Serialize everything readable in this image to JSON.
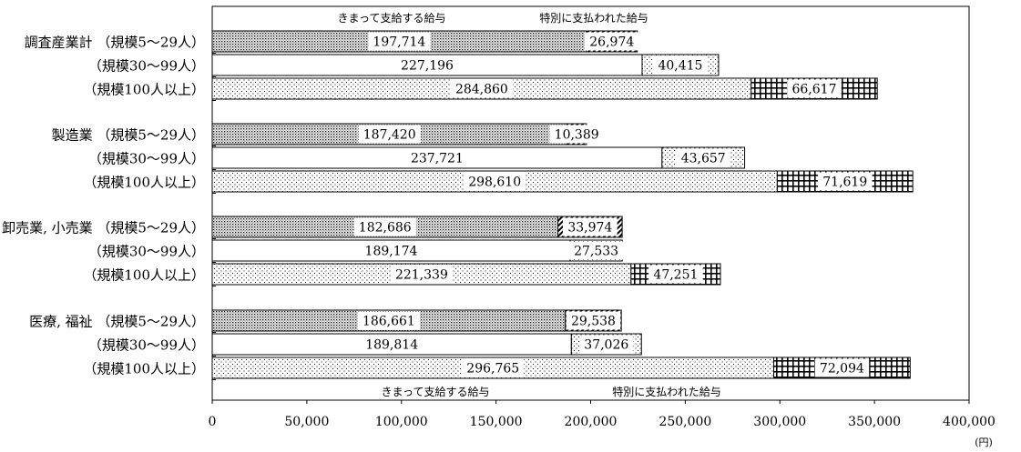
{
  "colors": {
    "regular_fill": "dense-dot-pattern",
    "special_fill_5_29": "hatched-pattern",
    "special_fill_30_99": "light-dot-pattern",
    "special_fill_100plus": "grid-pattern",
    "axis": "#000000"
  },
  "chart_data": {
    "type": "bar",
    "orientation": "horizontal",
    "stacked": true,
    "unit_label": "(円)",
    "xlim": [
      0,
      400000
    ],
    "x_ticks": [
      "0",
      "50,000",
      "100,000",
      "150,000",
      "200,000",
      "250,000",
      "300,000",
      "350,000",
      "400,000"
    ],
    "legend_top": [
      "きまって支給する給与",
      "特別に支払われた給与"
    ],
    "legend_bottom": [
      "きまって支給する給与",
      "特別に支払われた給与"
    ],
    "groups": [
      {
        "industry": "調査産業計",
        "bars": [
          {
            "size": "（規模5～29人）",
            "regular": 197714,
            "regular_label": "197,714",
            "special": 26974,
            "special_label": "26,974"
          },
          {
            "size": "（規模30～99人）",
            "regular": 227196,
            "regular_label": "227,196",
            "special": 40415,
            "special_label": "40,415"
          },
          {
            "size": "（規模100人以上）",
            "regular": 284860,
            "regular_label": "284,860",
            "special": 66617,
            "special_label": "66,617"
          }
        ]
      },
      {
        "industry": "製造業",
        "bars": [
          {
            "size": "（規模5～29人）",
            "regular": 187420,
            "regular_label": "187,420",
            "special": 10389,
            "special_label": "10,389"
          },
          {
            "size": "（規模30～99人）",
            "regular": 237721,
            "regular_label": "237,721",
            "special": 43657,
            "special_label": "43,657"
          },
          {
            "size": "（規模100人以上）",
            "regular": 298610,
            "regular_label": "298,610",
            "special": 71619,
            "special_label": "71,619"
          }
        ]
      },
      {
        "industry": "卸売業, 小売業",
        "bars": [
          {
            "size": "（規模5～29人）",
            "regular": 182686,
            "regular_label": "182,686",
            "special": 33974,
            "special_label": "33,974"
          },
          {
            "size": "（規模30～99人）",
            "regular": 189174,
            "regular_label": "189,174",
            "special": 27533,
            "special_label": "27,533"
          },
          {
            "size": "（規模100人以上）",
            "regular": 221339,
            "regular_label": "221,339",
            "special": 47251,
            "special_label": "47,251"
          }
        ]
      },
      {
        "industry": "医療, 福祉",
        "bars": [
          {
            "size": "（規模5～29人）",
            "regular": 186661,
            "regular_label": "186,661",
            "special": 29538,
            "special_label": "29,538"
          },
          {
            "size": "（規模30～99人）",
            "regular": 189814,
            "regular_label": "189,814",
            "special": 37026,
            "special_label": "37,026"
          },
          {
            "size": "（規模100人以上）",
            "regular": 296765,
            "regular_label": "296,765",
            "special": 72094,
            "special_label": "72,094"
          }
        ]
      }
    ]
  }
}
